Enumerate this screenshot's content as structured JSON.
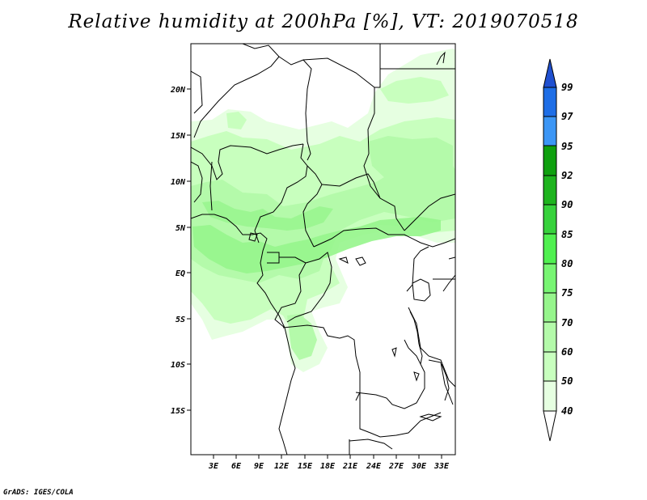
{
  "title": "Relative humidity at 200hPa [%], VT: 2019070518",
  "credit": "GrADS: IGES/COLA",
  "map": {
    "lat_labels": [
      "20N",
      "15N",
      "10N",
      "5N",
      "EQ",
      "5S",
      "10S",
      "15S"
    ],
    "lon_labels": [
      "3E",
      "6E",
      "9E",
      "12E",
      "15E",
      "18E",
      "21E",
      "24E",
      "27E",
      "30E",
      "33E"
    ]
  },
  "colorbar": {
    "levels": [
      "40",
      "50",
      "60",
      "70",
      "75",
      "80",
      "85",
      "90",
      "92",
      "95",
      "97",
      "99"
    ],
    "colors": {
      "40-50": "#e6ffe1",
      "50-60": "#c8ffbe",
      "60-70": "#b4faaa",
      "70-75": "#96f58c",
      "75-80": "#78f573",
      "80-85": "#50f050",
      "85-90": "#37d23c",
      "90-92": "#1eb41e",
      "92-95": "#0fa00f",
      "95-97": "#3c96f5",
      "97-99": "#1e6ee6",
      "above-99": "#2050d0"
    }
  }
}
